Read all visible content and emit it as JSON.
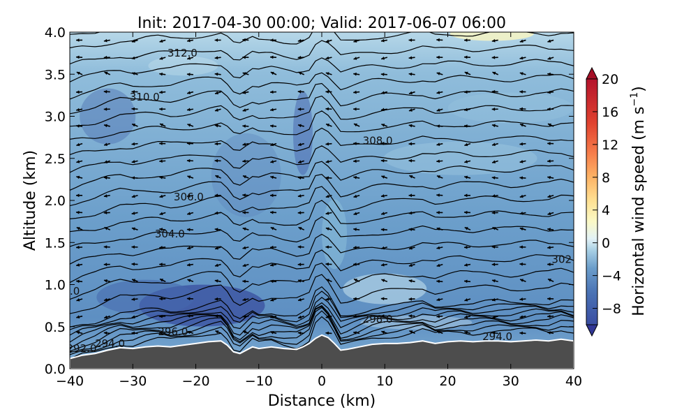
{
  "title": "Init: 2017-04-30 00:00; Valid: 2017-06-07 06:00",
  "colors": {
    "terrain": "#4d4d4d",
    "contour": "#000000",
    "arrow": "#000000"
  },
  "chart_data": {
    "type": "heatmap",
    "title": "Init: 2017-04-30 00:00; Valid: 2017-06-07 06:00",
    "xlabel": "Distance (km)",
    "ylabel": "Altitude (km)",
    "xlim": [
      -40,
      40
    ],
    "ylim": [
      0.0,
      4.0
    ],
    "xticks": [
      "−40",
      "−30",
      "−20",
      "−10",
      "0",
      "10",
      "20",
      "30",
      "40"
    ],
    "xtick_values": [
      -40,
      -30,
      -20,
      -10,
      0,
      10,
      20,
      30,
      40
    ],
    "yticks": [
      "0.0",
      "0.5",
      "1.0",
      "1.5",
      "2.0",
      "2.5",
      "3.0",
      "3.5",
      "4.0"
    ],
    "ytick_values": [
      0,
      0.5,
      1,
      1.5,
      2,
      2.5,
      3,
      3.5,
      4
    ],
    "colorbar": {
      "label_main": "Horizontal wind speed (m s",
      "label_sup": "−1",
      "label_close": ")",
      "range": [
        -10,
        20
      ],
      "extend": "both",
      "ticks": [
        "20",
        "16",
        "12",
        "8",
        "4",
        "0",
        "−4",
        "−8"
      ],
      "tick_values": [
        20,
        16,
        12,
        8,
        4,
        0,
        -4,
        -8
      ]
    },
    "terrain_km": [
      [
        -40,
        0.12
      ],
      [
        -38,
        0.16
      ],
      [
        -36,
        0.18
      ],
      [
        -34,
        0.22
      ],
      [
        -32,
        0.25
      ],
      [
        -30,
        0.24
      ],
      [
        -28,
        0.26
      ],
      [
        -26,
        0.27
      ],
      [
        -24,
        0.26
      ],
      [
        -22,
        0.28
      ],
      [
        -20,
        0.3
      ],
      [
        -18,
        0.32
      ],
      [
        -16,
        0.33
      ],
      [
        -15,
        0.28
      ],
      [
        -14,
        0.2
      ],
      [
        -13,
        0.18
      ],
      [
        -12,
        0.22
      ],
      [
        -11,
        0.26
      ],
      [
        -10,
        0.24
      ],
      [
        -8,
        0.26
      ],
      [
        -6,
        0.24
      ],
      [
        -4,
        0.23
      ],
      [
        -3,
        0.26
      ],
      [
        -2,
        0.3
      ],
      [
        -1,
        0.36
      ],
      [
        0,
        0.4
      ],
      [
        1,
        0.37
      ],
      [
        2,
        0.3
      ],
      [
        3,
        0.22
      ],
      [
        4,
        0.23
      ],
      [
        6,
        0.26
      ],
      [
        8,
        0.29
      ],
      [
        10,
        0.3
      ],
      [
        12,
        0.3
      ],
      [
        14,
        0.31
      ],
      [
        16,
        0.33
      ],
      [
        18,
        0.3
      ],
      [
        20,
        0.32
      ],
      [
        22,
        0.33
      ],
      [
        24,
        0.32
      ],
      [
        26,
        0.33
      ],
      [
        28,
        0.33
      ],
      [
        30,
        0.32
      ],
      [
        32,
        0.33
      ],
      [
        34,
        0.34
      ],
      [
        36,
        0.33
      ],
      [
        38,
        0.35
      ],
      [
        40,
        0.33
      ]
    ],
    "theta_contour_labels": [
      {
        "text": "312.0",
        "x": -24.5,
        "y": 3.75
      },
      {
        "text": "310.0",
        "x": -30.5,
        "y": 3.23
      },
      {
        "text": "308.0",
        "x": 6.5,
        "y": 2.71
      },
      {
        "text": "306.0",
        "x": -23.5,
        "y": 2.04
      },
      {
        "text": "304.0",
        "x": -26.5,
        "y": 1.6
      },
      {
        "text": "302",
        "x": 36.5,
        "y": 1.3
      },
      {
        "text": ".0",
        "x": -40,
        "y": 0.92
      },
      {
        "text": "298.0",
        "x": 6.5,
        "y": 0.59
      },
      {
        "text": "296.0",
        "x": -26,
        "y": 0.44
      },
      {
        "text": "294.0",
        "x": -36,
        "y": 0.3
      },
      {
        "text": "292.0",
        "x": -40.5,
        "y": 0.24
      },
      {
        "text": "294.0",
        "x": 25.5,
        "y": 0.38
      }
    ]
  }
}
